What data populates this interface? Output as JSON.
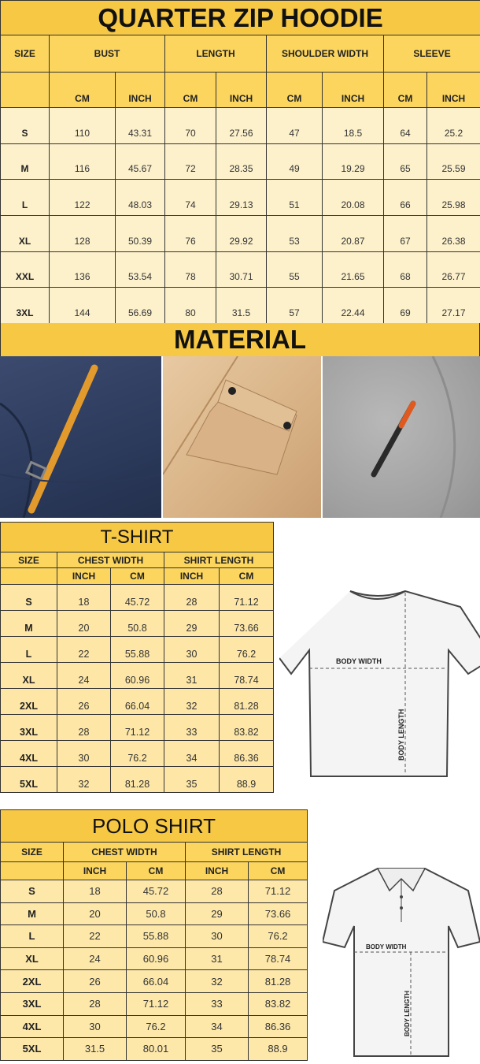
{
  "hoodie": {
    "title": "QUARTER ZIP HOODIE",
    "headers": [
      "SIZE",
      "BUST",
      "LENGTH",
      "SHOULDER WIDTH",
      "SLEEVE"
    ],
    "units": [
      "CM",
      "INCH",
      "CM",
      "INCH",
      "CM",
      "INCH",
      "CM",
      "INCH"
    ],
    "rows": [
      [
        "S",
        "110",
        "43.31",
        "70",
        "27.56",
        "47",
        "18.5",
        "64",
        "25.2"
      ],
      [
        "M",
        "116",
        "45.67",
        "72",
        "28.35",
        "49",
        "19.29",
        "65",
        "25.59"
      ],
      [
        "L",
        "122",
        "48.03",
        "74",
        "29.13",
        "51",
        "20.08",
        "66",
        "25.98"
      ],
      [
        "XL",
        "128",
        "50.39",
        "76",
        "29.92",
        "53",
        "20.87",
        "67",
        "26.38"
      ],
      [
        "XXL",
        "136",
        "53.54",
        "78",
        "30.71",
        "55",
        "21.65",
        "68",
        "26.77"
      ],
      [
        "3XL",
        "144",
        "56.69",
        "80",
        "31.5",
        "57",
        "22.44",
        "69",
        "27.17"
      ]
    ]
  },
  "material": {
    "title": "MATERIAL",
    "photos": [
      "navy-pocket-with-orange-zip-pull",
      "khaki-flap-pocket",
      "grey-sleeve-zip-pocket"
    ]
  },
  "tshirt": {
    "title": "T-SHIRT",
    "headers": [
      "SIZE",
      "CHEST WIDTH",
      "SHIRT LENGTH"
    ],
    "units": [
      "INCH",
      "CM",
      "INCH",
      "CM"
    ],
    "rows": [
      [
        "S",
        "18",
        "45.72",
        "28",
        "71.12"
      ],
      [
        "M",
        "20",
        "50.8",
        "29",
        "73.66"
      ],
      [
        "L",
        "22",
        "55.88",
        "30",
        "76.2"
      ],
      [
        "XL",
        "24",
        "60.96",
        "31",
        "78.74"
      ],
      [
        "2XL",
        "26",
        "66.04",
        "32",
        "81.28"
      ],
      [
        "3XL",
        "28",
        "71.12",
        "33",
        "83.82"
      ],
      [
        "4XL",
        "30",
        "76.2",
        "34",
        "86.36"
      ],
      [
        "5XL",
        "32",
        "81.28",
        "35",
        "88.9"
      ]
    ],
    "diagram": {
      "width_label": "BODY WIDTH",
      "length_label": "BODY LENGTH"
    }
  },
  "polo": {
    "title": "POLO SHIRT",
    "headers": [
      "SIZE",
      "CHEST WIDTH",
      "SHIRT LENGTH"
    ],
    "units": [
      "INCH",
      "CM",
      "INCH",
      "CM"
    ],
    "rows": [
      [
        "S",
        "18",
        "45.72",
        "28",
        "71.12"
      ],
      [
        "M",
        "20",
        "50.8",
        "29",
        "73.66"
      ],
      [
        "L",
        "22",
        "55.88",
        "30",
        "76.2"
      ],
      [
        "XL",
        "24",
        "60.96",
        "31",
        "78.74"
      ],
      [
        "2XL",
        "26",
        "66.04",
        "32",
        "81.28"
      ],
      [
        "3XL",
        "28",
        "71.12",
        "33",
        "83.82"
      ],
      [
        "4XL",
        "30",
        "76.2",
        "34",
        "86.36"
      ],
      [
        "5XL",
        "31.5",
        "80.01",
        "35",
        "88.9"
      ]
    ],
    "diagram": {
      "width_label": "BODY WIDTH",
      "length_label": "BODY LENGTH"
    }
  },
  "colors": {
    "title": "#f7c844",
    "header": "#fbd55e",
    "row": "#fdf1cc"
  }
}
